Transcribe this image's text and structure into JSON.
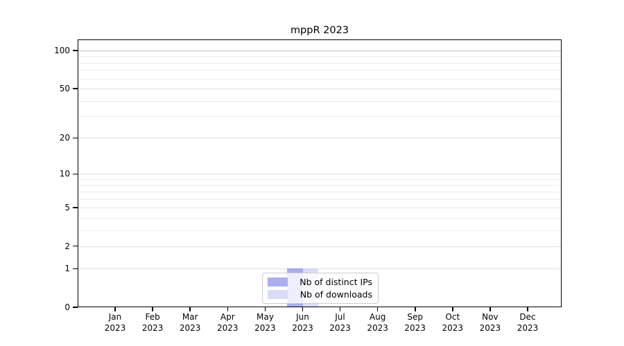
{
  "title": "mppR 2023",
  "chart_data": {
    "type": "bar",
    "title": "mppR 2023",
    "categories": [
      "Jan 2023",
      "Feb 2023",
      "Mar 2023",
      "Apr 2023",
      "May 2023",
      "Jun 2023",
      "Jul 2023",
      "Aug 2023",
      "Sep 2023",
      "Oct 2023",
      "Nov 2023",
      "Dec 2023"
    ],
    "series": [
      {
        "name": "Nb of distinct IPs",
        "color": "#a9aeee",
        "edge_color": "#9298e0",
        "values": [
          0,
          0,
          0,
          0,
          0,
          1,
          0,
          0,
          0,
          0,
          0,
          0
        ]
      },
      {
        "name": "Nb of downloads",
        "color": "#d9dcf7",
        "edge_color": "#c6cbf0",
        "values": [
          0,
          0,
          0,
          0,
          0,
          1,
          0,
          0,
          0,
          0,
          0,
          0
        ]
      }
    ],
    "xlabel": "",
    "ylabel": "",
    "y_ticks": [
      0,
      1,
      2,
      5,
      10,
      20,
      50,
      100
    ],
    "y_minor_gridlines": [
      3,
      4,
      6,
      7,
      8,
      9,
      30,
      40,
      60,
      70,
      80,
      90
    ],
    "y_scale": "log10(1+v)",
    "ylim": [
      0,
      100
    ],
    "grid": "horizontal only, light gray; line at 100 slightly darker",
    "legend_position": "inside bottom-center",
    "colors": {
      "grid_minor": "#ececec",
      "grid_major": "#e0e0e0",
      "grid_top": "#c2c2c2",
      "spine": "#000000",
      "text": "#000000",
      "background": "#ffffff"
    }
  }
}
